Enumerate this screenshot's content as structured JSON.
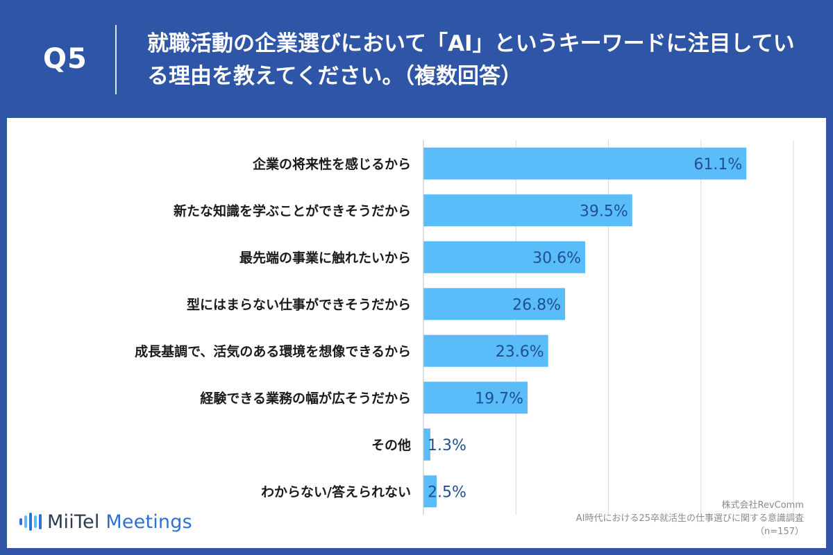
{
  "header": {
    "question_number": "Q5",
    "title": "就職活動の企業選びにおいて「AI」というキーワードに注目している理由を教えてください。（複数回答）"
  },
  "chart_data": {
    "type": "bar",
    "orientation": "horizontal",
    "categories": [
      "企業の将来性を感じるから",
      "新たな知識を学ぶことができそうだから",
      "最先端の事業に触れたいから",
      "型にはまらない仕事ができそうだから",
      "成長基調で、活気のある環境を想像できるから",
      "経験できる業務の幅が広そうだから",
      "その他",
      "わからない/答えられない"
    ],
    "values": [
      61.1,
      39.5,
      30.6,
      26.8,
      23.6,
      19.7,
      1.3,
      2.5
    ],
    "value_labels": [
      "61.1%",
      "39.5%",
      "30.6%",
      "26.8%",
      "23.6%",
      "19.7%",
      "1.3%",
      "2.5%"
    ],
    "unit": "%",
    "xlim": [
      0,
      70
    ],
    "grid_step": 17.5,
    "grid": true,
    "bar_color": "#5bbcfa"
  },
  "source": {
    "company": "株式会社RevComm",
    "survey": "AI時代における25卒就活生の仕事選びに関する意識調査",
    "sample": "（n=157）"
  },
  "logo": {
    "text_main": "MiiTel",
    "text_accent": "Meetings",
    "bar_colors": [
      "#2e6fd8",
      "#5bbcfa",
      "#2e6fd8",
      "#5bbcfa",
      "#2e6fd8"
    ]
  }
}
